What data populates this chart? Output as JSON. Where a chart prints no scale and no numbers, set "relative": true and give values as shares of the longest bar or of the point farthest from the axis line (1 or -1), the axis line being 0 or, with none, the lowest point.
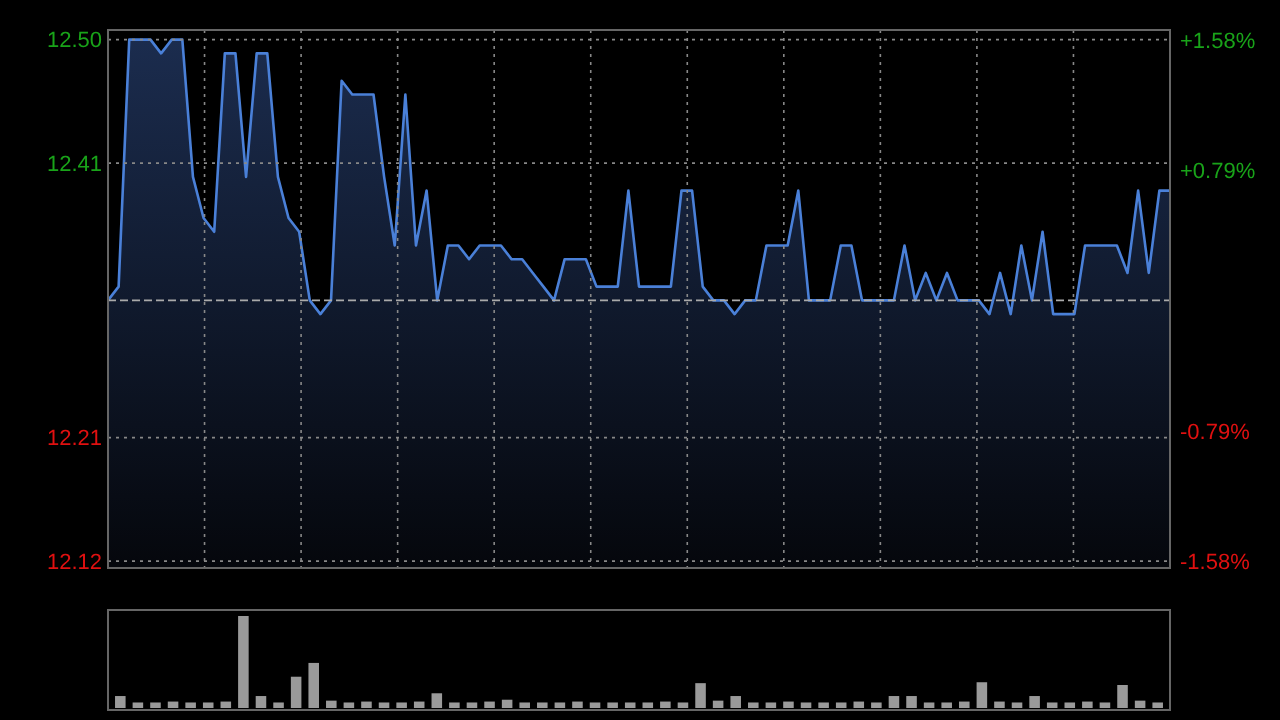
{
  "chart_data": [
    {
      "type": "area",
      "categories": [
        null,
        null,
        null,
        null,
        null,
        null,
        null,
        null,
        null,
        null,
        null,
        null,
        null,
        null,
        null,
        null,
        null,
        null,
        null,
        null,
        null,
        null,
        null,
        null,
        null,
        null,
        null,
        null,
        null,
        null,
        null,
        null,
        null,
        null,
        null,
        null,
        null,
        null,
        null,
        null,
        null,
        null,
        null,
        null,
        null,
        null,
        null,
        null,
        null,
        null,
        null,
        null,
        null,
        null,
        null,
        null,
        null,
        null,
        null,
        null,
        null,
        null,
        null,
        null,
        null,
        null,
        null,
        null,
        null,
        null,
        null,
        null,
        null,
        null,
        null,
        null,
        null,
        null,
        null,
        null,
        null,
        null,
        null,
        null,
        null,
        null,
        null,
        null,
        null,
        null,
        null,
        null,
        null,
        null,
        null,
        null,
        null,
        null,
        null,
        null,
        null
      ],
      "series": [
        {
          "color": "#4a80d8",
          "values": [
            12.31,
            12.32,
            12.5,
            12.5,
            12.5,
            12.49,
            12.5,
            12.5,
            12.4,
            12.37,
            12.36,
            12.49,
            12.49,
            12.4,
            12.49,
            12.49,
            12.4,
            12.37,
            12.36,
            12.31,
            12.3,
            12.31,
            12.47,
            12.46,
            12.46,
            12.46,
            12.4,
            12.35,
            12.46,
            12.35,
            12.39,
            12.31,
            12.35,
            12.35,
            12.34,
            12.35,
            12.35,
            12.35,
            12.34,
            12.34,
            12.33,
            12.32,
            12.31,
            12.34,
            12.34,
            12.34,
            12.32,
            12.32,
            12.32,
            12.39,
            12.32,
            12.32,
            12.32,
            12.32,
            12.39,
            12.39,
            12.32,
            12.31,
            12.31,
            12.3,
            12.31,
            12.31,
            12.35,
            12.35,
            12.35,
            12.39,
            12.31,
            12.31,
            12.31,
            12.35,
            12.35,
            12.31,
            12.31,
            12.31,
            12.31,
            12.35,
            12.31,
            12.33,
            12.31,
            12.33,
            12.31,
            12.31,
            12.31,
            12.3,
            12.33,
            12.3,
            12.35,
            12.31,
            12.36,
            12.3,
            12.3,
            12.3,
            12.35,
            12.35,
            12.35,
            12.35,
            12.33,
            12.39,
            12.33,
            12.39,
            12.39
          ]
        }
      ],
      "ylim": [
        12.115,
        12.507
      ],
      "yticks": [
        {
          "value": 12.5,
          "label": "12.50"
        },
        12.41,
        12.21,
        12.12
      ],
      "y2lim": [
        -1.62,
        1.64
      ],
      "y2ticks": [
        {
          "value": 1.58,
          "label": "+1.58%"
        },
        {
          "value": 0.79,
          "label": "+0.79%"
        },
        {
          "value": -0.79,
          "label": "-0.79%"
        },
        {
          "value": -1.58,
          "label": "-1.58%"
        }
      ],
      "ref_lines": [
        {
          "axis": "y",
          "value": 12.31,
          "color": "#aaaaaa",
          "line_style": "dashed"
        }
      ],
      "grid": true,
      "legend": false
    },
    {
      "type": "bar",
      "relative": true,
      "color": "#9a9a9a",
      "categories": [
        null,
        null,
        null,
        null,
        null,
        null,
        null,
        null,
        null,
        null,
        null,
        null,
        null,
        null,
        null,
        null,
        null,
        null,
        null,
        null,
        null,
        null,
        null,
        null,
        null,
        null,
        null,
        null,
        null,
        null,
        null,
        null,
        null,
        null,
        null,
        null,
        null,
        null,
        null,
        null,
        null,
        null,
        null,
        null,
        null,
        null,
        null,
        null,
        null,
        null,
        null,
        null,
        null,
        null,
        null,
        null,
        null,
        null,
        null,
        null
      ],
      "values": [
        0.13,
        0.06,
        0.06,
        0.07,
        0.06,
        0.06,
        0.07,
        1.0,
        0.13,
        0.06,
        0.34,
        0.49,
        0.08,
        0.06,
        0.07,
        0.06,
        0.06,
        0.07,
        0.16,
        0.06,
        0.06,
        0.07,
        0.09,
        0.06,
        0.06,
        0.06,
        0.07,
        0.06,
        0.06,
        0.06,
        0.06,
        0.07,
        0.06,
        0.27,
        0.08,
        0.13,
        0.06,
        0.06,
        0.07,
        0.06,
        0.06,
        0.06,
        0.07,
        0.06,
        0.13,
        0.13,
        0.06,
        0.06,
        0.07,
        0.28,
        0.07,
        0.06,
        0.13,
        0.06,
        0.06,
        0.07,
        0.06,
        0.25,
        0.08,
        0.06
      ],
      "legend": false
    }
  ]
}
